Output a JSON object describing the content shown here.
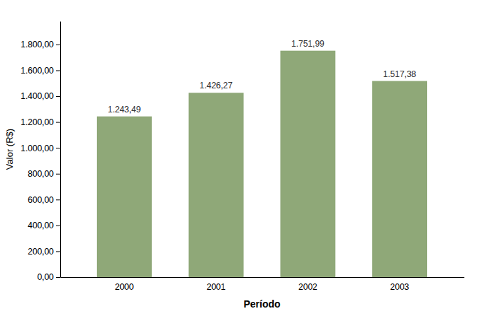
{
  "chart_data": {
    "type": "bar",
    "categories": [
      "2000",
      "2001",
      "2002",
      "2003"
    ],
    "values": [
      1243.49,
      1426.27,
      1751.99,
      1517.38
    ],
    "value_labels": [
      "1.243,49",
      "1.426,27",
      "1.751,99",
      "1.517,38"
    ],
    "data_labels": true,
    "color": "#8FA878",
    "xlabel": "Período",
    "ylabel": "Valor (R$)",
    "ylim": [
      0,
      1980
    ],
    "yticks": [
      {
        "value": 0,
        "label": "0,00"
      },
      {
        "value": 200,
        "label": "200,00"
      },
      {
        "value": 400,
        "label": "400,00"
      },
      {
        "value": 600,
        "label": "600,00"
      },
      {
        "value": 800,
        "label": "800,00"
      },
      {
        "value": 1000,
        "label": "1.000,00"
      },
      {
        "value": 1200,
        "label": "1.200,00"
      },
      {
        "value": 1400,
        "label": "1.400,00"
      },
      {
        "value": 1600,
        "label": "1.600,00"
      },
      {
        "value": 1800,
        "label": "1.800,00"
      }
    ],
    "grid": false
  }
}
